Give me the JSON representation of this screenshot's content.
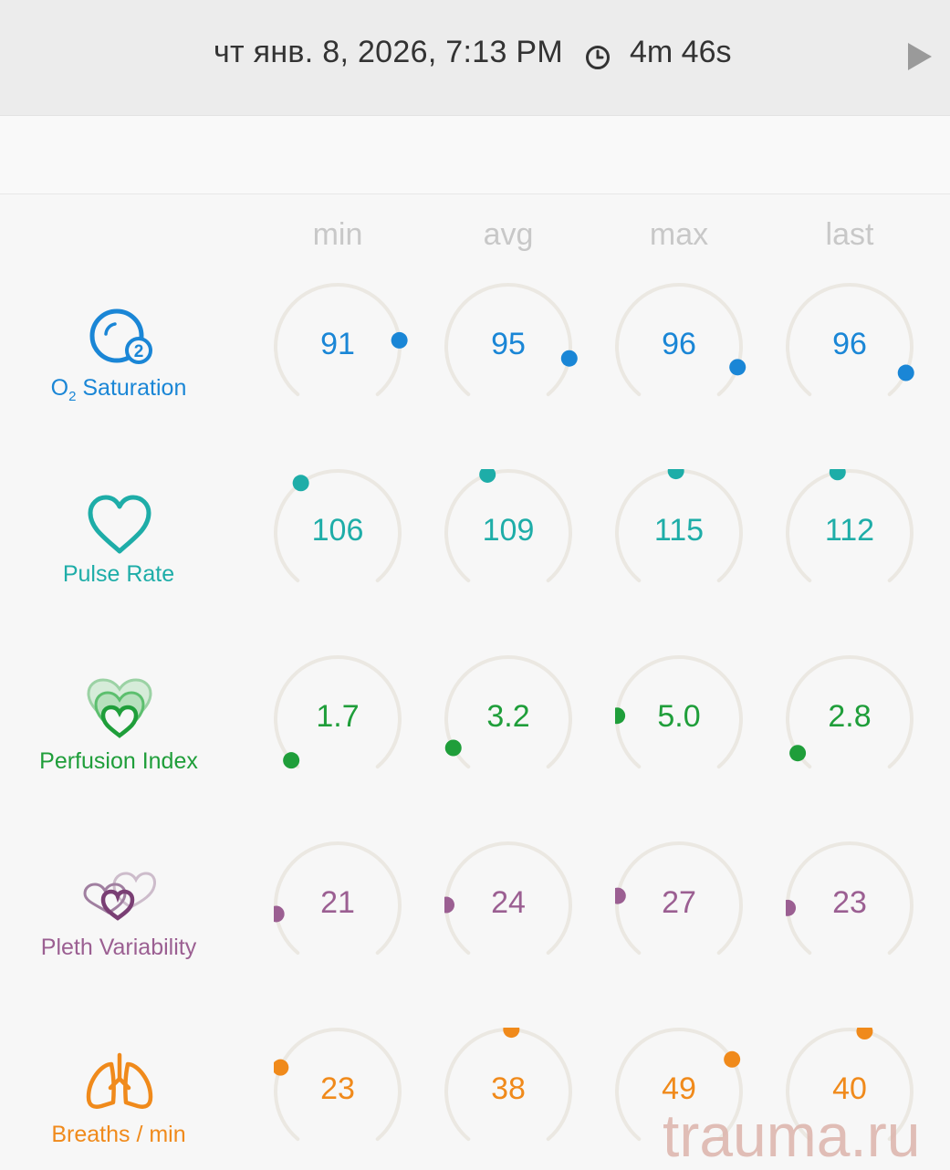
{
  "header": {
    "datetime": "чт янв. 8, 2026, 7:13 PM",
    "duration": "4m 46s",
    "clock_icon": "clock-icon",
    "play_icon": "play-icon"
  },
  "columns": [
    "min",
    "avg",
    "max",
    "last"
  ],
  "metrics": [
    {
      "key": "o2",
      "label_main": "O",
      "label_sub": "2",
      "label_rest": " Saturation",
      "color": "#1a86d6",
      "icon": "o2-bubble-icon",
      "values": [
        "91",
        "95",
        "96",
        "96"
      ],
      "fractions": [
        0.8,
        0.86,
        0.89,
        0.91
      ]
    },
    {
      "key": "pulse",
      "label": "Pulse Rate",
      "color": "#1eada8",
      "icon": "heart-outline-icon",
      "values": [
        "106",
        "109",
        "115",
        "112"
      ],
      "fractions": [
        0.37,
        0.43,
        0.49,
        0.46
      ]
    },
    {
      "key": "pi",
      "label": "Perfusion Index",
      "color": "#1f9e3a",
      "icon": "layered-hearts-icon",
      "values": [
        "1.7",
        "3.2",
        "5.0",
        "2.8"
      ],
      "fractions": [
        0.03,
        0.08,
        0.19,
        0.06
      ]
    },
    {
      "key": "pvi",
      "label": "Pleth Variability",
      "color": "#9b5f92",
      "icon": "pleth-hearts-icon",
      "values": [
        "21",
        "24",
        "27",
        "23"
      ],
      "fractions": [
        0.15,
        0.18,
        0.21,
        0.17
      ]
    },
    {
      "key": "rr",
      "label": "Breaths / min",
      "color": "#f08a1b",
      "icon": "lungs-icon",
      "values": [
        "23",
        "38",
        "49",
        "40"
      ],
      "fractions": [
        0.26,
        0.51,
        0.71,
        0.55
      ]
    }
  ],
  "watermark": "trauma.ru"
}
